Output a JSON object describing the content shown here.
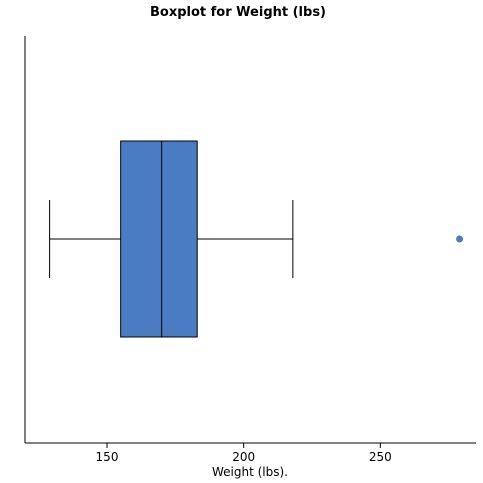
{
  "chart_data": {
    "type": "boxplot",
    "title": "Boxplot for Weight (lbs)",
    "xlabel": "Weight (lbs).",
    "ylabel": "",
    "xlim": [
      120,
      285
    ],
    "ticks": [
      150,
      200,
      250
    ],
    "tick_labels": [
      "150",
      "200",
      "250"
    ],
    "box": {
      "whisker_low": 129,
      "q1": 155,
      "median": 170,
      "q3": 183,
      "whisker_high": 218
    },
    "outliers": [
      279
    ],
    "colors": {
      "box_fill": "#4a7cc4",
      "outlier": "#4a7cc4",
      "line": "#000000"
    },
    "grid": false,
    "legend": "none"
  }
}
